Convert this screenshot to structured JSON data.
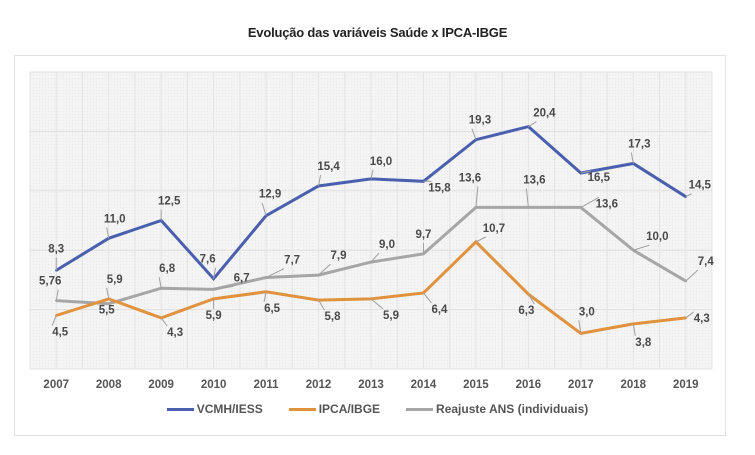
{
  "chart_data": {
    "type": "line",
    "title": "Evolução das variáveis Saúde x IPCA-IBGE",
    "xlabel": "",
    "ylabel": "",
    "categories": [
      "2007",
      "2008",
      "2009",
      "2010",
      "2011",
      "2012",
      "2013",
      "2014",
      "2015",
      "2016",
      "2017",
      "2018",
      "2019"
    ],
    "ylim": [
      0,
      25
    ],
    "y_ticks_visible": false,
    "grid": true,
    "legend_position": "bottom",
    "series": [
      {
        "name": "VCMH/IESS",
        "color": "#4a5fae",
        "values": [
          8.3,
          11.0,
          12.5,
          7.6,
          12.9,
          15.4,
          16.0,
          15.8,
          19.3,
          20.4,
          16.5,
          17.3,
          14.5
        ],
        "labels": [
          "8,3",
          "11,0",
          "12,5",
          "7,6",
          "12,9",
          "15,4",
          "16,0",
          "15,8",
          "19,3",
          "20,4",
          "16,5",
          "17,3",
          "14,5"
        ]
      },
      {
        "name": "IPCA/IBGE",
        "color": "#e0923e",
        "values": [
          4.5,
          5.9,
          4.3,
          5.9,
          6.5,
          5.8,
          5.9,
          6.4,
          10.7,
          6.3,
          3.0,
          3.8,
          4.3
        ],
        "labels": [
          "4,5",
          "5,9",
          "4,3",
          "5,9",
          "6,5",
          "5,8",
          "5,9",
          "6,4",
          "10,7",
          "6,3",
          "3,0",
          "3,8",
          "4,3"
        ]
      },
      {
        "name": "Reajuste ANS (individuais)",
        "color": "#a6a6a6",
        "values": [
          5.76,
          5.5,
          6.8,
          6.7,
          7.7,
          7.9,
          9.0,
          9.7,
          13.6,
          13.6,
          13.6,
          10.0,
          7.4
        ],
        "labels": [
          "5,76",
          "5,5",
          "6,8",
          "6,7",
          "7,7",
          "7,9",
          "9,0",
          "9,7",
          "13,6",
          "13,6",
          "13,6",
          "10,0",
          "7,4"
        ]
      }
    ]
  }
}
